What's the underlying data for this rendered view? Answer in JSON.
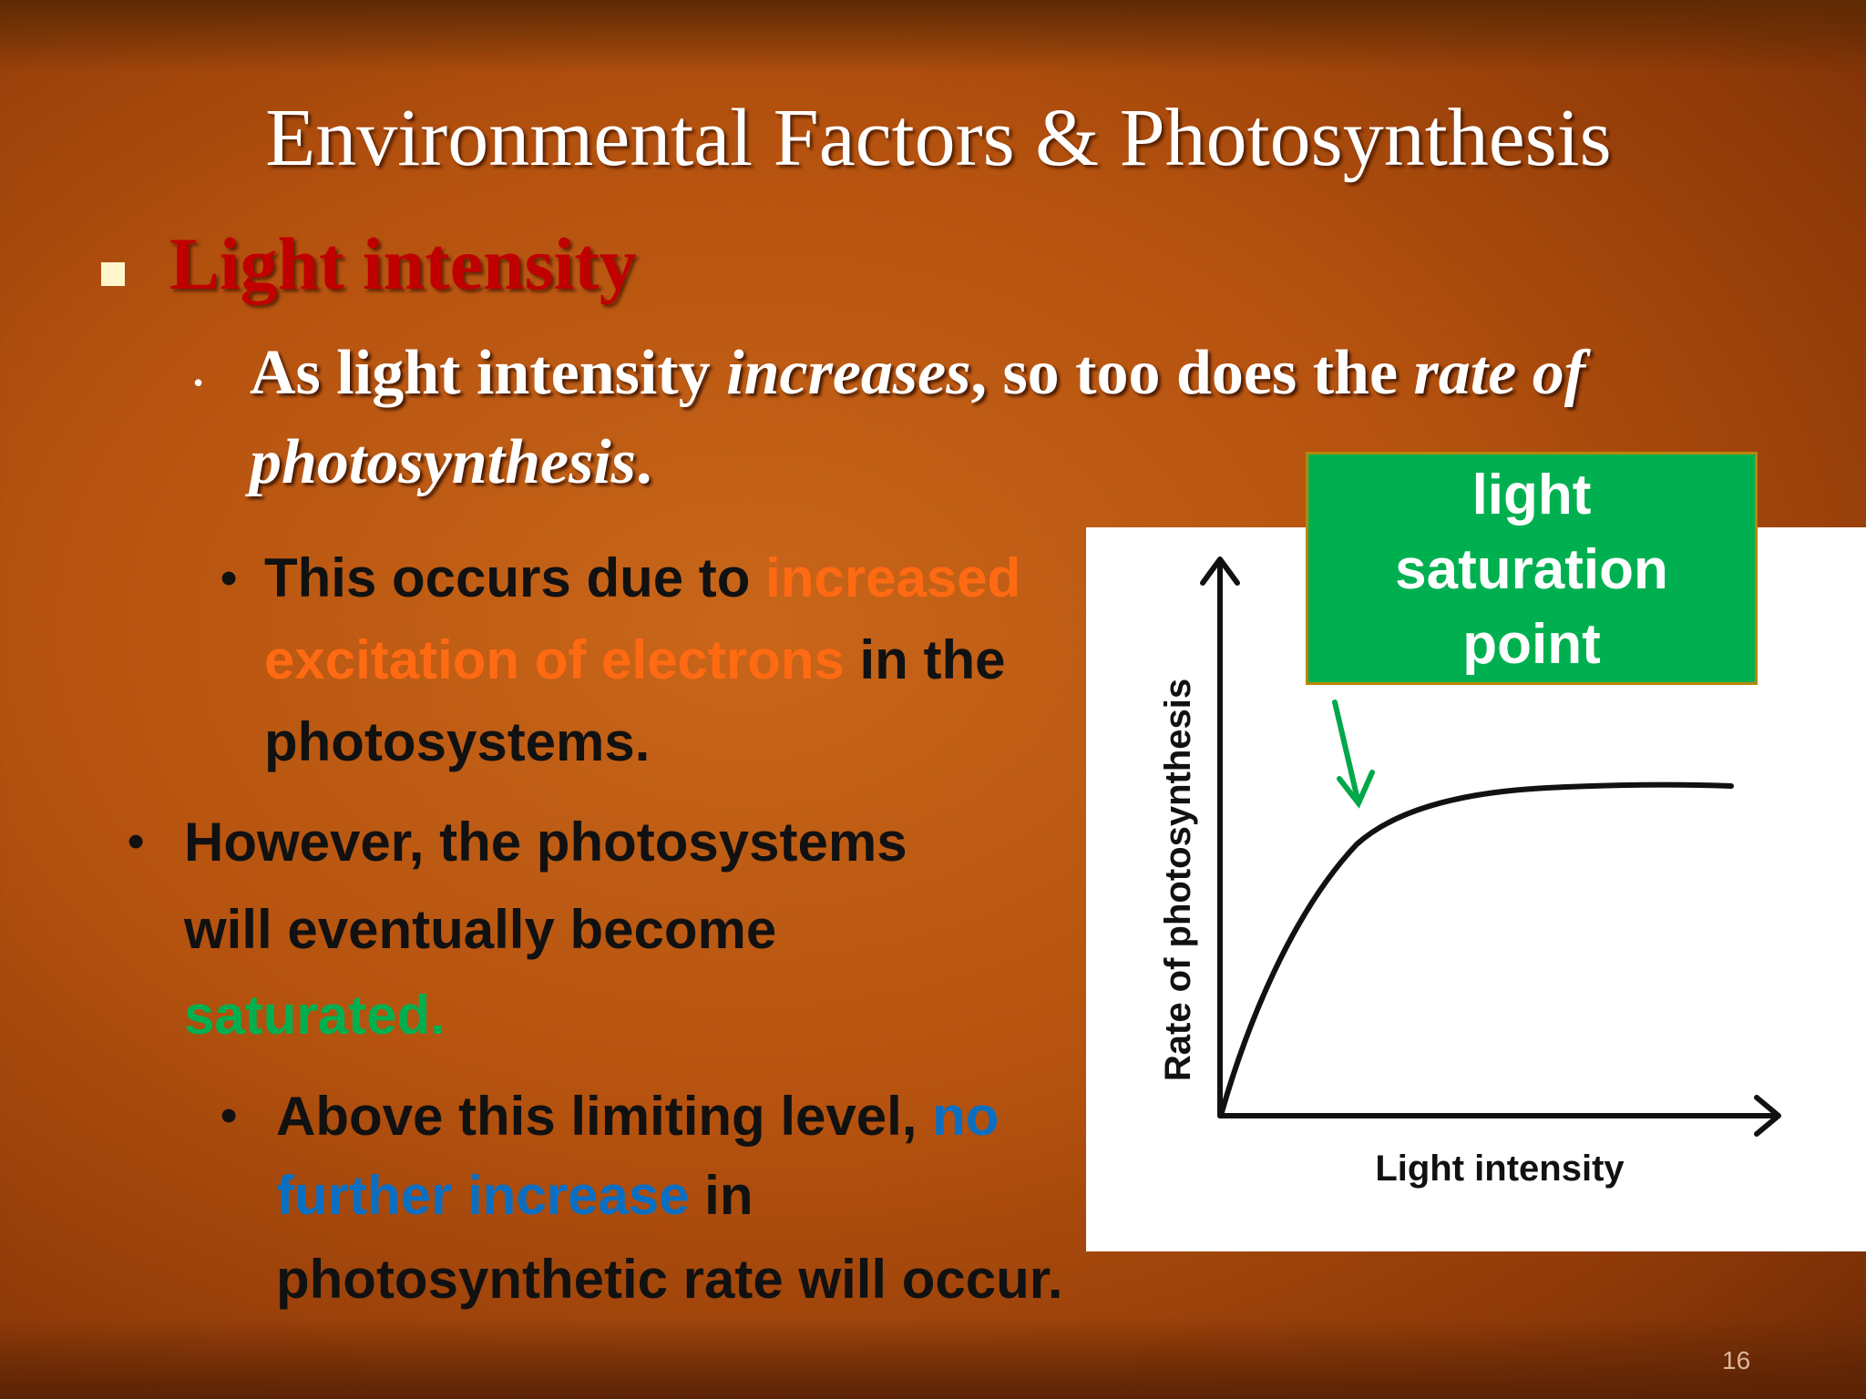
{
  "title": "Environmental Factors & Photosynthesis",
  "heading": "Light intensity",
  "point": {
    "lines": [
      [
        "As light intensity ",
        "increases",
        ", so too does the ",
        "rate of"
      ],
      [
        "photosynthesis",
        "."
      ]
    ]
  },
  "body": [
    {
      "lines": [
        [
          "This occurs due to ",
          "increased"
        ],
        [
          "excitation of electrons",
          " in the"
        ],
        [
          "photosystems."
        ]
      ]
    },
    {
      "lines": [
        [
          "However, the photosystems"
        ],
        [
          "will eventually become"
        ],
        [
          "saturated."
        ]
      ]
    },
    {
      "lines": [
        [
          "Above this limiting level, ",
          "no"
        ],
        [
          "further increase",
          " in"
        ],
        [
          "photosynthetic rate will occur."
        ]
      ]
    }
  ],
  "figure": {
    "y_label": "Rate of photosynthesis",
    "x_label": "Light intensity",
    "callout": [
      "light",
      "saturation",
      "point"
    ]
  },
  "page_number": "16"
}
